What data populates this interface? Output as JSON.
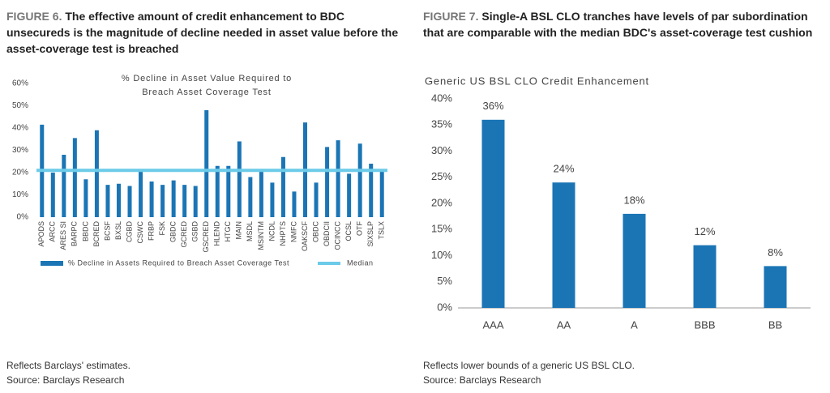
{
  "figures": [
    {
      "label": "FIGURE 6.",
      "title": "The effective amount of credit enhancement to BDC unsecureds is the magnitude of decline needed in asset value before the asset-coverage test is breached",
      "note": "Reflects Barclays' estimates.",
      "source": "Source: Barclays Research"
    },
    {
      "label": "FIGURE 7.",
      "title": "Single-A BSL CLO tranches have levels of par subordination that are comparable with the median BDC's asset-coverage test cushion",
      "note": "Reflects lower bounds of a generic US BSL CLO.",
      "source": "Source: Barclays Research"
    }
  ],
  "chart_data": [
    {
      "type": "bar",
      "title": [
        "% Decline in Asset Value Required to",
        "Breach Asset Coverage Test"
      ],
      "categories": [
        "APODS",
        "ARCC",
        "ARES SI",
        "BARPC",
        "BBDC",
        "BCRED",
        "BCSF",
        "BXSL",
        "CGBD",
        "CSWC",
        "FRBP",
        "FSK",
        "GBDC",
        "GCRED",
        "GSBD",
        "GSCRED",
        "HLEND",
        "HTGC",
        "MAIN",
        "MSDL",
        "MSINTM",
        "NCDL",
        "NHPTS",
        "NMFC",
        "OAKSCF",
        "OBDC",
        "OBDCII",
        "OCINCC",
        "OCSL",
        "OTF",
        "SIXSLP",
        "TSLX"
      ],
      "series": [
        {
          "name": "% Decline in Assets Required to Breach Asset Coverage Test",
          "color": "#1b75b5",
          "values": [
            41.5,
            20,
            28,
            35.5,
            17,
            39,
            14.5,
            15,
            14,
            20.5,
            16,
            14.5,
            16.5,
            14.5,
            14,
            48,
            23,
            23,
            34,
            18,
            20.5,
            15.5,
            27,
            11.5,
            42.5,
            15.5,
            31.5,
            34.5,
            19.5,
            33,
            24,
            21
          ]
        }
      ],
      "median": {
        "name": "Median",
        "value": 21,
        "color": "#6ccbe8"
      },
      "ylim": [
        0,
        60
      ],
      "yticks": [
        {
          "value": 0,
          "label": "0%"
        },
        {
          "value": 10,
          "label": "10%"
        },
        {
          "value": 20,
          "label": "20%"
        },
        {
          "value": 30,
          "label": "30%"
        },
        {
          "value": 40,
          "label": "40%"
        },
        {
          "value": 50,
          "label": "50%"
        },
        {
          "value": 60,
          "label": "60%"
        }
      ]
    },
    {
      "type": "bar",
      "title": [
        "Generic US BSL CLO Credit Enhancement"
      ],
      "categories": [
        "AAA",
        "AA",
        "A",
        "BBB",
        "BB"
      ],
      "values": [
        36,
        24,
        18,
        12,
        8
      ],
      "value_labels": [
        "36%",
        "24%",
        "18%",
        "12%",
        "8%"
      ],
      "color": "#1b75b5",
      "ylim": [
        0,
        40
      ],
      "yticks": [
        {
          "value": 0,
          "label": "0%"
        },
        {
          "value": 5,
          "label": "5%"
        },
        {
          "value": 10,
          "label": "10%"
        },
        {
          "value": 15,
          "label": "15%"
        },
        {
          "value": 20,
          "label": "20%"
        },
        {
          "value": 25,
          "label": "25%"
        },
        {
          "value": 30,
          "label": "30%"
        },
        {
          "value": 35,
          "label": "35%"
        },
        {
          "value": 40,
          "label": "40%"
        }
      ]
    }
  ]
}
